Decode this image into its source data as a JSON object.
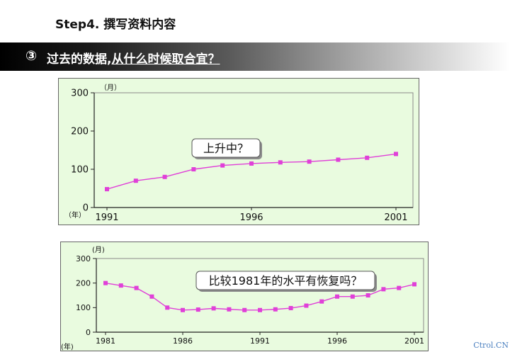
{
  "header": {
    "step_title": "Step4. 撰写资料内容",
    "banner_number": "③",
    "banner_prefix": "过去的数据,",
    "banner_underlined": "从什么时候取合宜？"
  },
  "watermark": "Ctrol.CN",
  "colors": {
    "series": "#e040d8",
    "plot_bg": "#e9fbdf",
    "banner_dark": "#000000"
  },
  "chart_data": [
    {
      "type": "line",
      "unit_label": "（月）",
      "year_label": "（年）",
      "ylim": [
        0,
        300
      ],
      "yticks": [
        "0",
        "100",
        "200",
        "300"
      ],
      "xlim": [
        1991,
        2001
      ],
      "xtick_labels": [
        "1991",
        "1996",
        "2001"
      ],
      "callout": "上升中？",
      "series": [
        {
          "x": [
            1991,
            1992,
            1993,
            1994,
            1995,
            1996,
            1997,
            1998,
            1999,
            2000,
            2001
          ],
          "values": [
            48,
            70,
            80,
            100,
            110,
            115,
            118,
            120,
            125,
            130,
            140
          ]
        }
      ]
    },
    {
      "type": "line",
      "unit_label": "(月)",
      "year_label": "(年)",
      "ylim": [
        0,
        300
      ],
      "yticks": [
        "0",
        "100",
        "200",
        "300"
      ],
      "xlim": [
        1981,
        2001
      ],
      "xtick_labels": [
        "1981",
        "1986",
        "1991",
        "1996",
        "2001"
      ],
      "callout": "比较1981年的水平有恢复吗？",
      "series": [
        {
          "x": [
            1981,
            1982,
            1983,
            1984,
            1985,
            1986,
            1987,
            1988,
            1989,
            1990,
            1991,
            1992,
            1993,
            1994,
            1995,
            1996,
            1997,
            1998,
            1999,
            2000,
            2001
          ],
          "values": [
            200,
            190,
            180,
            145,
            100,
            90,
            92,
            97,
            93,
            90,
            90,
            93,
            98,
            108,
            125,
            145,
            145,
            150,
            175,
            180,
            195
          ]
        }
      ]
    }
  ]
}
